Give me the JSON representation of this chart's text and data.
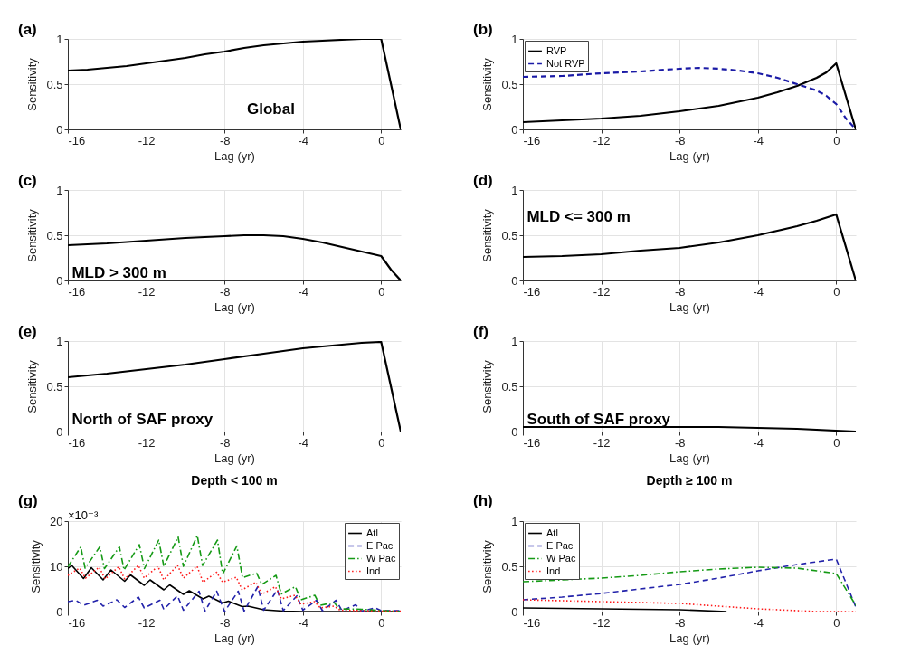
{
  "chart_data": [
    {
      "type": "line",
      "xlabel": "Lag (yr)",
      "ylabel": "Sensitivity",
      "annotations": [
        "(a)",
        "Global"
      ],
      "xlim": [
        -16,
        1
      ],
      "xticks": [
        -16,
        -12,
        -8,
        -4,
        0
      ],
      "ylim": [
        0,
        1
      ],
      "yticks": [
        0,
        0.5,
        1
      ],
      "grid": true,
      "x": [
        -16,
        -15,
        -14,
        -13,
        -12,
        -11,
        -10,
        -9,
        -8,
        -7,
        -6,
        -5,
        -4,
        -3,
        -2,
        -1,
        0,
        1
      ],
      "series": [
        {
          "color": "#000000",
          "line_style": "solid",
          "values": [
            0.65,
            0.66,
            0.68,
            0.7,
            0.73,
            0.76,
            0.79,
            0.83,
            0.86,
            0.9,
            0.93,
            0.95,
            0.97,
            0.98,
            0.99,
            1.0,
            1.0,
            0
          ]
        }
      ]
    },
    {
      "type": "line",
      "xlabel": "Lag (yr)",
      "ylabel": "Sensitivity",
      "annotations": [
        "(b)"
      ],
      "xlim": [
        -16,
        1
      ],
      "xticks": [
        -16,
        -12,
        -8,
        -4,
        0
      ],
      "ylim": [
        0,
        1
      ],
      "yticks": [
        0,
        0.5,
        1
      ],
      "grid": true,
      "legend": "top left",
      "series": [
        {
          "name": "RVP",
          "color": "#000000",
          "line_style": "solid",
          "x": [
            -16,
            -14,
            -12,
            -10,
            -8,
            -6,
            -4,
            -3,
            -2,
            -1,
            -0.5,
            0,
            1
          ],
          "values": [
            0.08,
            0.1,
            0.12,
            0.15,
            0.2,
            0.26,
            0.35,
            0.41,
            0.48,
            0.57,
            0.63,
            0.73,
            0
          ]
        },
        {
          "name": "Not RVP",
          "color": "#1a1aa6",
          "line_style": "dashed",
          "x": [
            -16,
            -14,
            -12,
            -10,
            -8,
            -7,
            -6,
            -5,
            -4,
            -3,
            -2,
            -1,
            -0.5,
            0,
            0.5,
            1
          ],
          "values": [
            0.58,
            0.59,
            0.62,
            0.64,
            0.67,
            0.68,
            0.67,
            0.65,
            0.62,
            0.57,
            0.5,
            0.43,
            0.37,
            0.28,
            0.12,
            0
          ]
        }
      ]
    },
    {
      "type": "line",
      "xlabel": "Lag (yr)",
      "ylabel": "Sensitivity",
      "annotations": [
        "(c)",
        "MLD > 300 m"
      ],
      "xlim": [
        -16,
        1
      ],
      "xticks": [
        -16,
        -12,
        -8,
        -4,
        0
      ],
      "ylim": [
        0,
        1
      ],
      "yticks": [
        0,
        0.5,
        1
      ],
      "grid": true,
      "x": [
        -16,
        -14,
        -12,
        -10,
        -8,
        -7,
        -6,
        -5,
        -4,
        -3,
        -2,
        -1,
        0,
        0.5,
        1
      ],
      "series": [
        {
          "color": "#000000",
          "line_style": "solid",
          "values": [
            0.39,
            0.41,
            0.44,
            0.47,
            0.49,
            0.5,
            0.5,
            0.49,
            0.46,
            0.42,
            0.37,
            0.32,
            0.27,
            0.12,
            0
          ]
        }
      ]
    },
    {
      "type": "line",
      "xlabel": "Lag (yr)",
      "ylabel": "Sensitivity",
      "annotations": [
        "(d)",
        "MLD <= 300 m"
      ],
      "xlim": [
        -16,
        1
      ],
      "xticks": [
        -16,
        -12,
        -8,
        -4,
        0
      ],
      "ylim": [
        0,
        1
      ],
      "yticks": [
        0,
        0.5,
        1
      ],
      "grid": true,
      "x": [
        -16,
        -14,
        -12,
        -10,
        -8,
        -6,
        -4,
        -3,
        -2,
        -1,
        0,
        1
      ],
      "series": [
        {
          "color": "#000000",
          "line_style": "solid",
          "values": [
            0.26,
            0.27,
            0.29,
            0.33,
            0.36,
            0.42,
            0.5,
            0.55,
            0.6,
            0.66,
            0.73,
            0
          ]
        }
      ]
    },
    {
      "type": "line",
      "xlabel": "Lag (yr)",
      "ylabel": "Sensitivity",
      "annotations": [
        "(e)",
        "North of SAF proxy"
      ],
      "xlim": [
        -16,
        1
      ],
      "xticks": [
        -16,
        -12,
        -8,
        -4,
        0
      ],
      "ylim": [
        0,
        1
      ],
      "yticks": [
        0,
        0.5,
        1
      ],
      "grid": true,
      "x": [
        -16,
        -14,
        -12,
        -10,
        -8,
        -6,
        -4,
        -2,
        -1,
        0,
        1
      ],
      "series": [
        {
          "color": "#000000",
          "line_style": "solid",
          "values": [
            0.6,
            0.64,
            0.69,
            0.74,
            0.8,
            0.86,
            0.92,
            0.96,
            0.98,
            0.99,
            0
          ]
        }
      ]
    },
    {
      "type": "line",
      "xlabel": "Lag (yr)",
      "ylabel": "Sensitivity",
      "annotations": [
        "(f)",
        "South of SAF proxy"
      ],
      "xlim": [
        -16,
        1
      ],
      "xticks": [
        -16,
        -12,
        -8,
        -4,
        0
      ],
      "ylim": [
        0,
        1
      ],
      "yticks": [
        0,
        0.5,
        1
      ],
      "grid": true,
      "x": [
        -16,
        -12,
        -8,
        -6,
        -4,
        -2,
        0,
        1
      ],
      "series": [
        {
          "color": "#000000",
          "line_style": "solid",
          "values": [
            0.05,
            0.05,
            0.05,
            0.05,
            0.04,
            0.03,
            0.01,
            0
          ]
        }
      ]
    },
    {
      "type": "line",
      "title": "Depth < 100 m",
      "xlabel": "Lag (yr)",
      "ylabel": "Sensitivity",
      "annotations": [
        "(g)",
        "×10⁻³"
      ],
      "xlim": [
        -16,
        1
      ],
      "xticks": [
        -16,
        -12,
        -8,
        -4,
        0
      ],
      "ylim": [
        0,
        20
      ],
      "yticks": [
        0,
        10,
        20
      ],
      "grid": true,
      "legend": "top right",
      "series": [
        {
          "name": "Atl",
          "color": "#000000",
          "line_style": "solid",
          "x": [
            -16,
            -15.8,
            -15.2,
            -14.8,
            -14.2,
            -13.8,
            -13.1,
            -12.8,
            -12.1,
            -11.8,
            -11.1,
            -10.8,
            -10.1,
            -9.8,
            -9.1,
            -8.8,
            -8.1,
            -7.8,
            -7.1,
            -6.8,
            -6,
            -5,
            -4,
            1
          ],
          "values": [
            9.5,
            10.2,
            7.3,
            9.7,
            7.0,
            9.2,
            6.7,
            8.1,
            5.8,
            7.0,
            4.8,
            5.9,
            3.8,
            4.6,
            2.8,
            3.4,
            1.9,
            2.3,
            1.1,
            1.2,
            0.4,
            0.1,
            0,
            0
          ]
        },
        {
          "name": "E Pac",
          "color": "#2222aa",
          "line_style": "dashed",
          "x": [
            -16,
            -15.6,
            -15.2,
            -14.5,
            -14.2,
            -13.5,
            -13.1,
            -12.4,
            -12.1,
            -11.3,
            -11.1,
            -10.4,
            -10.1,
            -9.3,
            -9,
            -8.4,
            -8,
            -7.3,
            -7,
            -6.3,
            -6,
            -5.3,
            -5,
            -4.3,
            -4,
            -3.3,
            -3,
            -2.3,
            -2,
            -1.3,
            -1,
            -0.3,
            0,
            1
          ],
          "values": [
            2.2,
            2.5,
            1.4,
            2.5,
            1.2,
            2.6,
            0.9,
            3.2,
            0.8,
            2.5,
            0.5,
            3.5,
            0.3,
            4.5,
            0.1,
            4.5,
            0,
            4.5,
            0.1,
            5.5,
            0.3,
            4.8,
            0.2,
            3.5,
            0.3,
            2.5,
            0.2,
            2.5,
            0.2,
            1.5,
            0.1,
            0.8,
            0.2,
            0.2
          ]
        },
        {
          "name": "W Pac",
          "color": "#159a15",
          "line_style": "dashdot",
          "x": [
            -16,
            -15.34,
            -15.12,
            -14.37,
            -14.13,
            -13.37,
            -13.13,
            -12.35,
            -12.09,
            -11.36,
            -11.1,
            -10.37,
            -10.1,
            -9.39,
            -9.12,
            -8.36,
            -8.09,
            -7.37,
            -7.08,
            -6.36,
            -6.09,
            -5.37,
            -5.1,
            -4.38,
            -4.1,
            -3.39,
            -3.12,
            -2.4,
            -2.14,
            -1,
            0,
            1
          ],
          "values": [
            9.9,
            14.3,
            9.6,
            14.3,
            9.5,
            14.3,
            9.2,
            14.8,
            9.5,
            15.8,
            10.0,
            16.5,
            10.0,
            16.8,
            10.2,
            15.8,
            8.3,
            14.5,
            7.5,
            8.5,
            6.0,
            8.0,
            3.9,
            5.5,
            2.6,
            3.6,
            1.4,
            2.0,
            0.6,
            0.5,
            0.2,
            0
          ]
        },
        {
          "name": "Ind",
          "color": "#ff1a1a",
          "line_style": "dotted",
          "x": [
            -16,
            -15.4,
            -15.1,
            -14.4,
            -14.1,
            -13.4,
            -13.1,
            -12.4,
            -12.1,
            -11.4,
            -11.1,
            -10.4,
            -10.1,
            -9.4,
            -9.1,
            -8.4,
            -8.1,
            -7.4,
            -7.1,
            -6.4,
            -6.1,
            -5.4,
            -5.1,
            -4.4,
            -4.1,
            -3.4,
            -3.1,
            -2.4,
            -2.1,
            -1,
            0,
            1
          ],
          "values": [
            8.0,
            9.6,
            7.4,
            9.8,
            7.2,
            9.9,
            7.2,
            10.2,
            7.4,
            10.0,
            7.0,
            10.2,
            7.4,
            10.0,
            6.5,
            8.7,
            6.5,
            7.6,
            4.8,
            6.5,
            3.8,
            5.5,
            2.8,
            3.6,
            1.6,
            2.2,
            0.8,
            1.2,
            0.3,
            0.2,
            0.1,
            0.1
          ]
        }
      ]
    },
    {
      "type": "line",
      "title": "Depth ≥ 100 m",
      "xlabel": "Lag (yr)",
      "ylabel": "Sensitivity",
      "annotations": [
        "(h)"
      ],
      "xlim": [
        -16,
        1
      ],
      "xticks": [
        -16,
        -12,
        -8,
        -4,
        0
      ],
      "ylim": [
        0,
        1
      ],
      "yticks": [
        0,
        0.5,
        1
      ],
      "grid": true,
      "legend": "top left",
      "series": [
        {
          "name": "Atl",
          "color": "#000000",
          "line_style": "solid",
          "x": [
            -16,
            -12,
            -8,
            -5.6
          ],
          "values": [
            0.04,
            0.03,
            0.02,
            0
          ]
        },
        {
          "name": "E Pac",
          "color": "#2222aa",
          "line_style": "dashed",
          "x": [
            -16,
            -14,
            -12,
            -10,
            -8,
            -6,
            -4,
            -2,
            -1,
            0,
            1
          ],
          "values": [
            0.13,
            0.16,
            0.2,
            0.25,
            0.3,
            0.37,
            0.45,
            0.52,
            0.55,
            0.58,
            0.05
          ]
        },
        {
          "name": "W Pac",
          "color": "#159a15",
          "line_style": "dashdot",
          "x": [
            -16,
            -14,
            -12,
            -10,
            -8,
            -6,
            -4,
            -2,
            -1,
            0,
            1
          ],
          "values": [
            0.33,
            0.35,
            0.37,
            0.4,
            0.44,
            0.47,
            0.49,
            0.48,
            0.45,
            0.42,
            0.07
          ]
        },
        {
          "name": "Ind",
          "color": "#ff1a1a",
          "line_style": "dotted",
          "x": [
            -16,
            -12,
            -8,
            -6,
            -4,
            -2,
            -1,
            0,
            1
          ],
          "values": [
            0.13,
            0.11,
            0.09,
            0.06,
            0.03,
            0.01,
            0,
            0,
            0
          ]
        }
      ]
    }
  ]
}
